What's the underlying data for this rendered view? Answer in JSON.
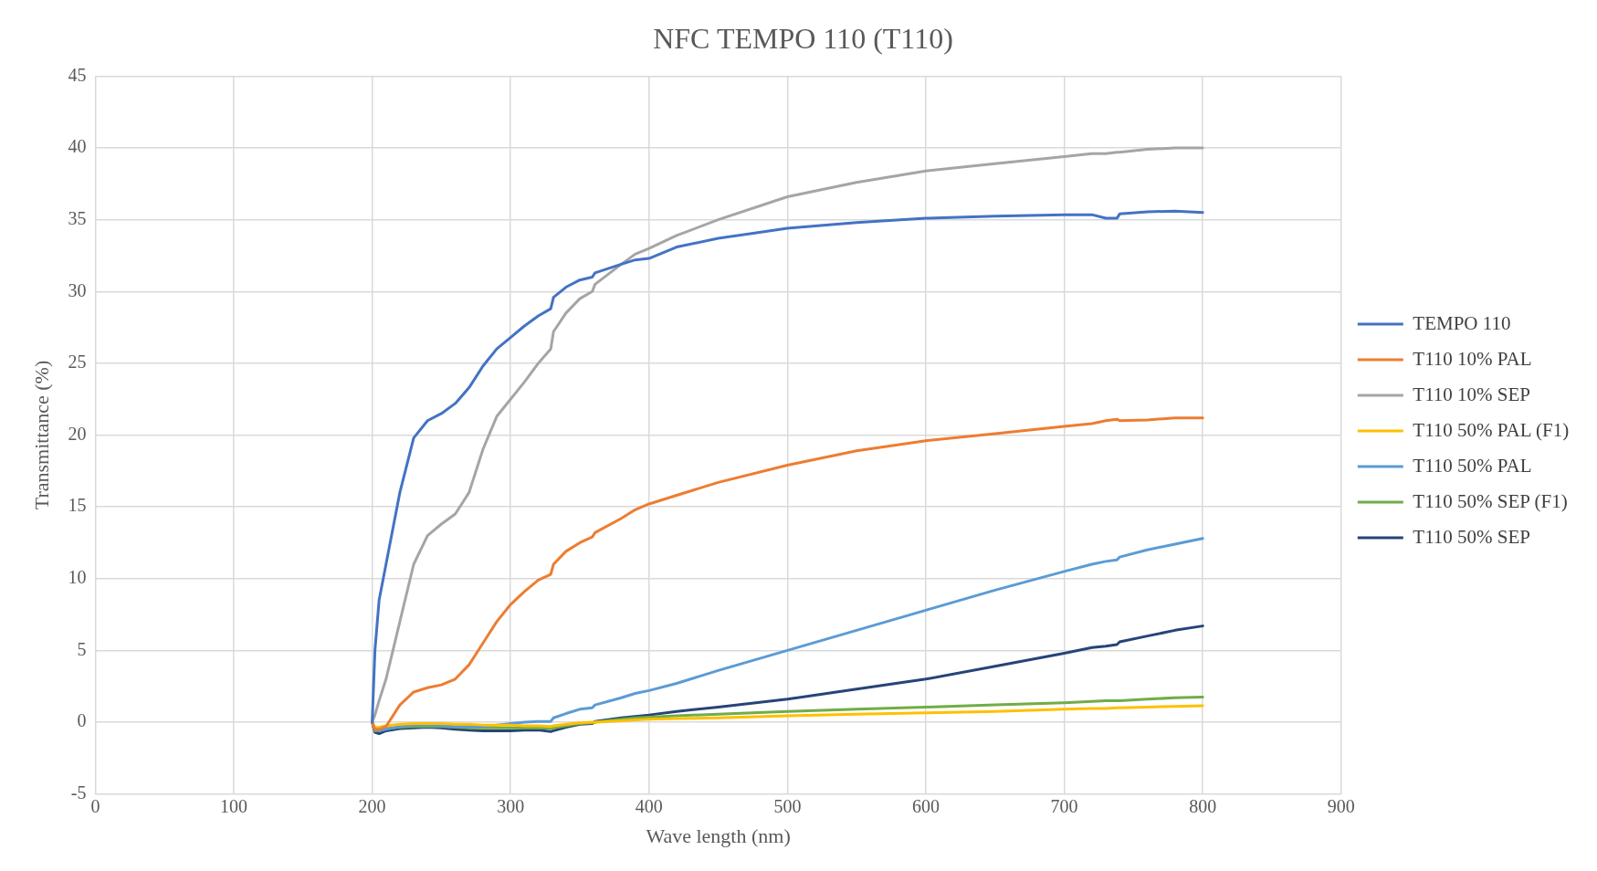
{
  "chart_data": {
    "type": "line",
    "title": "NFC TEMPO 110 (T110)",
    "xlabel": "Wave length (nm)",
    "ylabel": "Transmittance (%)",
    "x": [
      200,
      202,
      205,
      210,
      220,
      230,
      240,
      250,
      260,
      270,
      280,
      290,
      300,
      310,
      320,
      329,
      331,
      340,
      350,
      359,
      361,
      380,
      390,
      400,
      420,
      450,
      500,
      550,
      600,
      650,
      700,
      720,
      730,
      738,
      740,
      760,
      780,
      800
    ],
    "series": [
      {
        "name": "TEMPO 110",
        "color": "#4472c4",
        "values": [
          0,
          5,
          8.5,
          11,
          16,
          19.8,
          21,
          21.5,
          22.2,
          23.3,
          24.8,
          26,
          26.8,
          27.6,
          28.3,
          28.8,
          29.6,
          30.3,
          30.8,
          31,
          31.3,
          31.9,
          32.2,
          32.3,
          33.1,
          33.7,
          34.4,
          34.8,
          35.1,
          35.25,
          35.35,
          35.35,
          35.1,
          35.1,
          35.4,
          35.55,
          35.6,
          35.5
        ]
      },
      {
        "name": "T110 10% PAL",
        "color": "#ed7d31",
        "values": [
          0,
          -0.5,
          -0.5,
          -0.3,
          1.2,
          2.1,
          2.4,
          2.6,
          3,
          4,
          5.5,
          7,
          8.2,
          9.1,
          9.9,
          10.3,
          11,
          11.9,
          12.5,
          12.9,
          13.2,
          14.2,
          14.8,
          15.2,
          15.8,
          16.7,
          17.9,
          18.9,
          19.6,
          20.1,
          20.6,
          20.8,
          21,
          21.1,
          21,
          21.05,
          21.2,
          21.2
        ]
      },
      {
        "name": "T110 10% SEP",
        "color": "#a5a5a5",
        "values": [
          0,
          0.5,
          1.5,
          3,
          7,
          11,
          13,
          13.8,
          14.5,
          16,
          19,
          21.3,
          22.5,
          23.7,
          25,
          26,
          27.2,
          28.5,
          29.5,
          30,
          30.5,
          31.9,
          32.6,
          33,
          33.9,
          35,
          36.6,
          37.6,
          38.4,
          38.9,
          39.4,
          39.6,
          39.6,
          39.7,
          39.7,
          39.9,
          40,
          40
        ]
      },
      {
        "name": "T110 50% PAL (F1)",
        "color": "#ffc000",
        "values": [
          0,
          -0.4,
          -0.35,
          -0.25,
          -0.15,
          -0.1,
          -0.1,
          -0.1,
          -0.15,
          -0.15,
          -0.2,
          -0.2,
          -0.2,
          -0.25,
          -0.25,
          -0.3,
          -0.25,
          -0.15,
          -0.05,
          0,
          0,
          0.1,
          0.15,
          0.2,
          0.25,
          0.3,
          0.45,
          0.55,
          0.65,
          0.75,
          0.9,
          0.95,
          0.95,
          1,
          1,
          1.05,
          1.1,
          1.15
        ]
      },
      {
        "name": "T110 50% PAL",
        "color": "#5b9bd5",
        "values": [
          0,
          -0.5,
          -0.6,
          -0.5,
          -0.3,
          -0.2,
          -0.2,
          -0.25,
          -0.3,
          -0.3,
          -0.3,
          -0.2,
          -0.1,
          0,
          0.05,
          0.05,
          0.3,
          0.6,
          0.9,
          1,
          1.2,
          1.7,
          2,
          2.2,
          2.7,
          3.6,
          5,
          6.4,
          7.8,
          9.2,
          10.5,
          11,
          11.2,
          11.3,
          11.5,
          12,
          12.4,
          12.8
        ]
      },
      {
        "name": "T110 50% SEP (F1)",
        "color": "#70ad47",
        "values": [
          0,
          -0.6,
          -0.6,
          -0.45,
          -0.35,
          -0.3,
          -0.3,
          -0.3,
          -0.35,
          -0.4,
          -0.4,
          -0.4,
          -0.4,
          -0.4,
          -0.4,
          -0.45,
          -0.4,
          -0.25,
          -0.1,
          -0.05,
          0,
          0.2,
          0.3,
          0.35,
          0.45,
          0.55,
          0.75,
          0.9,
          1.05,
          1.2,
          1.35,
          1.45,
          1.5,
          1.5,
          1.5,
          1.6,
          1.7,
          1.75
        ]
      },
      {
        "name": "T110 50% SEP",
        "color": "#264478",
        "values": [
          0,
          -0.7,
          -0.8,
          -0.6,
          -0.45,
          -0.4,
          -0.35,
          -0.4,
          -0.5,
          -0.55,
          -0.6,
          -0.6,
          -0.6,
          -0.55,
          -0.55,
          -0.65,
          -0.6,
          -0.35,
          -0.15,
          -0.1,
          0.05,
          0.3,
          0.4,
          0.5,
          0.75,
          1.05,
          1.6,
          2.3,
          3,
          3.9,
          4.8,
          5.2,
          5.3,
          5.4,
          5.6,
          6,
          6.4,
          6.7
        ]
      }
    ],
    "xlim": [
      0,
      900
    ],
    "xticks": [
      0,
      100,
      200,
      300,
      400,
      500,
      600,
      700,
      800,
      900
    ],
    "ylim": [
      -5,
      45
    ],
    "yticks": [
      -5,
      0,
      5,
      10,
      15,
      20,
      25,
      30,
      35,
      40,
      45
    ],
    "grid": true,
    "legend": "right",
    "marker": "none",
    "line_style": "solid"
  }
}
